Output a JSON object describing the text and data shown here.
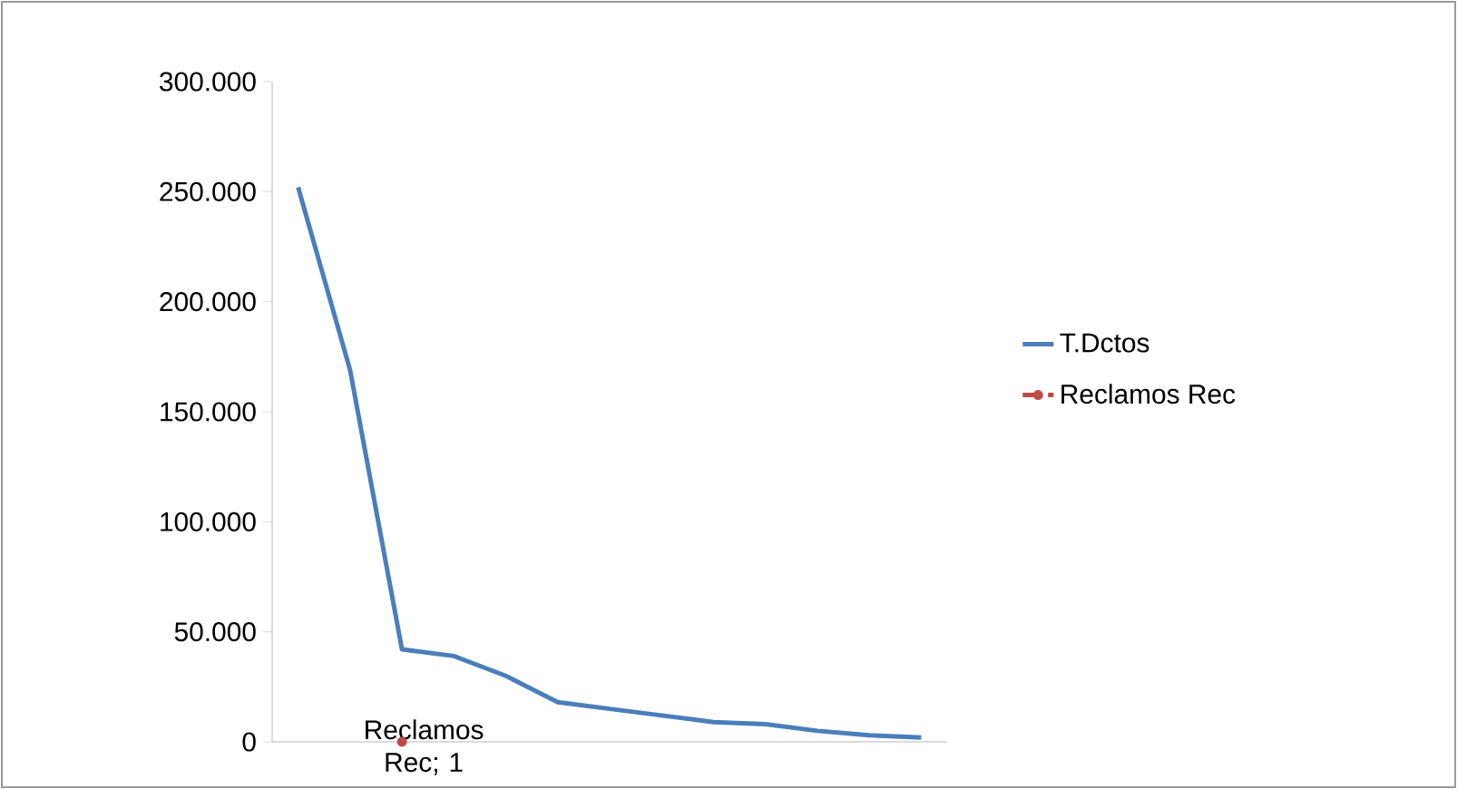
{
  "chart_data": {
    "type": "line",
    "categories": [
      null,
      null,
      null,
      null,
      null,
      null,
      null,
      null,
      null,
      null,
      null,
      null,
      null
    ],
    "series": [
      {
        "name": "T.Dctos",
        "color": "#4a7ebb",
        "line_style": "solid",
        "values": [
          252000,
          169000,
          42000,
          39000,
          30000,
          18000,
          15000,
          12000,
          9000,
          8000,
          5000,
          3000,
          2000
        ]
      },
      {
        "name": "Reclamos Rec",
        "color": "#be4b48",
        "line_style": "dashed",
        "values": [
          null,
          null,
          1,
          null,
          null,
          null,
          null,
          null,
          null,
          null,
          null,
          null,
          null
        ],
        "value_labels": [
          null,
          null,
          "Reclamos Rec; 1",
          null,
          null,
          null,
          null,
          null,
          null,
          null,
          null,
          null,
          null
        ]
      }
    ],
    "ylim": [
      0,
      300000
    ],
    "yticks": [
      {
        "value": 0,
        "label": "0"
      },
      {
        "value": 50000,
        "label": "50.000"
      },
      {
        "value": 100000,
        "label": "100.000"
      },
      {
        "value": 150000,
        "label": "150.000"
      },
      {
        "value": 200000,
        "label": "200.000"
      },
      {
        "value": 250000,
        "label": "250.000"
      },
      {
        "value": 300000,
        "label": "300.000"
      }
    ],
    "grid": false,
    "legend": "right",
    "marker": "none",
    "tick_labels": "y"
  }
}
